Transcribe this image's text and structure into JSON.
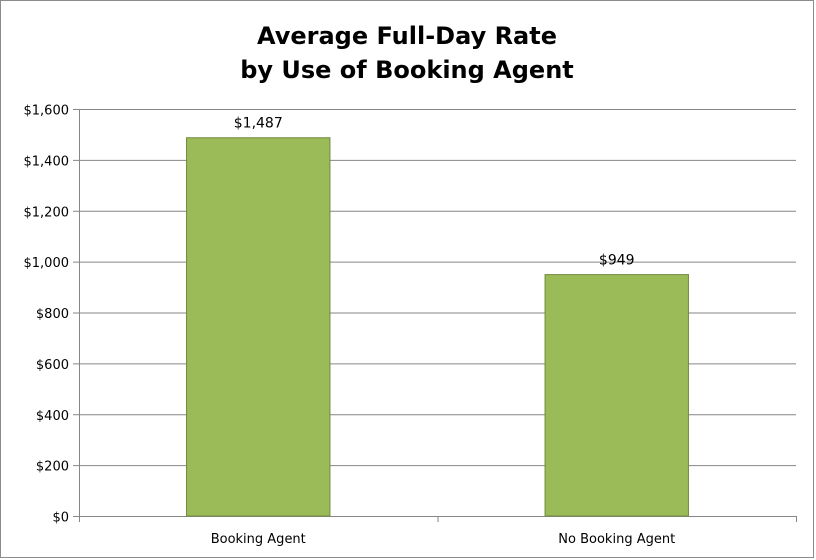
{
  "chart_data": {
    "type": "bar",
    "title_lines": [
      "Average Full-Day Rate",
      "by Use of Booking Agent"
    ],
    "categories": [
      "Booking Agent",
      "No Booking Agent"
    ],
    "values": [
      1487,
      949
    ],
    "data_labels": [
      "$1,487",
      "$949"
    ],
    "xlabel": "",
    "ylabel": "",
    "ylim": [
      0,
      1600
    ],
    "y_ticks": [
      0,
      200,
      400,
      600,
      800,
      1000,
      1200,
      1400,
      1600
    ],
    "y_tick_labels": [
      "$0",
      "$200",
      "$400",
      "$600",
      "$800",
      "$1,000",
      "$1,200",
      "$1,400",
      "$1,600"
    ],
    "grid": true,
    "legend": "none",
    "colors": {
      "bar_fill": "#9BBB59",
      "bar_stroke": "#71893F",
      "grid": "#868686",
      "axis": "#868686"
    }
  }
}
